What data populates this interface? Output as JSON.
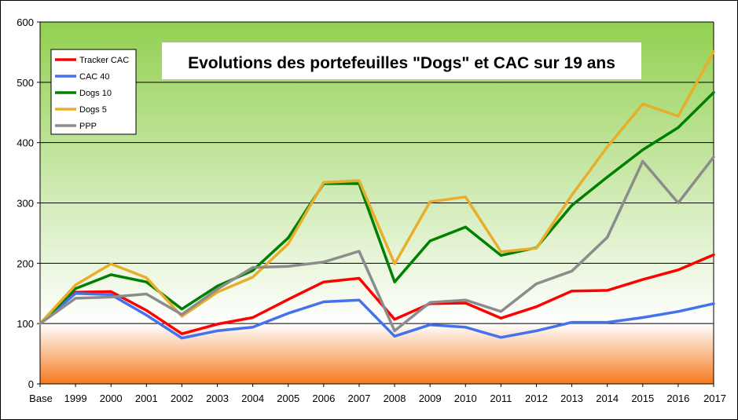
{
  "chart_data": {
    "type": "line",
    "title": "Evolutions des portefeuilles \"Dogs\" et CAC sur  19 ans",
    "xlabel": "",
    "ylabel": "",
    "ylim": [
      0,
      600
    ],
    "yticks": [
      0,
      100,
      200,
      300,
      400,
      500,
      600
    ],
    "grid": true,
    "legend": "top-left",
    "categories": [
      "Base",
      "1999",
      "2000",
      "2001",
      "2002",
      "2003",
      "2004",
      "2005",
      "2006",
      "2007",
      "2008",
      "2009",
      "2010",
      "2011",
      "2012",
      "2013",
      "2014",
      "2015",
      "2016",
      "2017"
    ],
    "series": [
      {
        "name": "Tracker CAC",
        "color": "#ff0000",
        "values": [
          100,
          152,
          153,
          122,
          83,
          99,
          110,
          140,
          169,
          175,
          107,
          133,
          134,
          109,
          128,
          154,
          155,
          173,
          189,
          214
        ]
      },
      {
        "name": "CAC 40",
        "color": "#4472ef",
        "values": [
          100,
          150,
          148,
          114,
          76,
          88,
          94,
          117,
          136,
          139,
          79,
          98,
          94,
          77,
          88,
          102,
          102,
          110,
          120,
          133
        ]
      },
      {
        "name": "Dogs 10",
        "color": "#008000",
        "values": [
          100,
          158,
          181,
          169,
          124,
          162,
          188,
          242,
          332,
          332,
          169,
          237,
          260,
          213,
          226,
          296,
          343,
          388,
          425,
          483
        ]
      },
      {
        "name": "Dogs 5",
        "color": "#e9ad2c",
        "values": [
          100,
          164,
          199,
          176,
          112,
          152,
          177,
          232,
          334,
          337,
          199,
          302,
          310,
          219,
          225,
          313,
          393,
          464,
          444,
          551
        ]
      },
      {
        "name": "PPP",
        "color": "#8c8c8c",
        "values": [
          100,
          142,
          144,
          149,
          115,
          157,
          193,
          195,
          202,
          220,
          88,
          135,
          139,
          120,
          166,
          187,
          243,
          369,
          300,
          376
        ]
      }
    ]
  }
}
